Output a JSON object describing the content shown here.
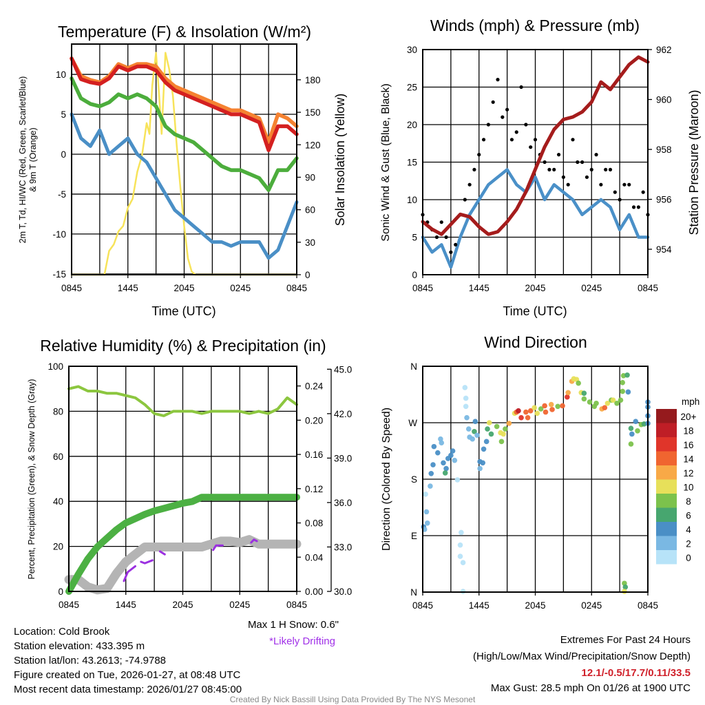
{
  "figure": {
    "location": "Location: Cold Brook",
    "elevation": "Station elevation: 433.395 m",
    "latlon": "Station lat/lon: 43.2613; -74.9788",
    "created": "Figure created on Tue, 2026-01-27, at 08:48 UTC",
    "recent": "Most recent data timestamp: 2026/01/27 08:45:00",
    "max_snow": "Max 1 H Snow: 0.6\"",
    "drifting": "*Likely Drifting",
    "extremes_title": "Extremes For Past 24 Hours",
    "extremes_sub": "(High/Low/Max Wind/Precipitation/Snow Depth)",
    "extremes_values": "12.1/-0.5/17.7/0.11/33.5",
    "max_gust": "Max Gust: 28.5 mph On 01/26 at 1900 UTC",
    "credit": "Created By Nick Bassill Using Data Provided By The NYS Mesonet"
  },
  "chart_data": [
    {
      "type": "line",
      "title": "Temperature (F) & Insolation (W/m²)",
      "xlabel": "Time (UTC)",
      "ylabel": "2m T, Td, HI/WC (Red, Green, Scarlet/Blue)",
      "ylabel2": "& 9m T (Orange)",
      "y2label": "Solar Insolation (Yellow)",
      "xticks": [
        "0845",
        "1445",
        "2045",
        "0245",
        "0845"
      ],
      "xlim_hours": [
        0,
        24
      ],
      "ylim": [
        -15.1,
        13.8
      ],
      "yticks": [
        -15,
        -10,
        -5,
        0,
        5,
        10
      ],
      "y2lim": [
        0,
        213
      ],
      "y2ticks": [
        0,
        30,
        60,
        90,
        120,
        150,
        180
      ],
      "hours": [
        0,
        1,
        2,
        3,
        4,
        5,
        6,
        7,
        8,
        9,
        10,
        11,
        12,
        13,
        14,
        15,
        16,
        17,
        18,
        19,
        20,
        21,
        22,
        23,
        24
      ],
      "series": [
        {
          "name": "Solar Insolation",
          "color": "#f7e35a",
          "axis": "right",
          "x": [
            0,
            3.5,
            4,
            4.5,
            5,
            5.5,
            6,
            6.5,
            7,
            7.5,
            8,
            8.3,
            8.6,
            9,
            9.3,
            9.6,
            10,
            10.4,
            10.8,
            11.2,
            11.6,
            12,
            12.4,
            12.8,
            13.2,
            24
          ],
          "y": [
            0,
            0,
            22,
            28,
            40,
            45,
            62,
            70,
            95,
            110,
            140,
            130,
            175,
            205,
            170,
            130,
            205,
            190,
            165,
            120,
            80,
            45,
            15,
            3,
            0,
            0
          ]
        },
        {
          "name": "9m T",
          "color": "#f58231",
          "axis": "left",
          "y": [
            12,
            9.8,
            9.3,
            9.0,
            9.8,
            11.3,
            10.8,
            11.3,
            11.3,
            11.0,
            9.5,
            8.5,
            8.0,
            7.5,
            7.0,
            6.5,
            6.0,
            5.5,
            5.5,
            5.0,
            4.5,
            1.5,
            5.0,
            4.5,
            3.5
          ]
        },
        {
          "name": "2m T",
          "color": "#d42020",
          "axis": "left",
          "y": [
            12,
            9.4,
            9.0,
            8.8,
            9.5,
            11.0,
            10.5,
            11.0,
            11.0,
            10.5,
            9.0,
            8.0,
            7.5,
            7.0,
            6.5,
            6.0,
            5.5,
            5.0,
            5.0,
            4.5,
            4.0,
            0.5,
            3.5,
            3.5,
            2.5
          ]
        },
        {
          "name": "HI/WC",
          "color": "#4cad3c",
          "axis": "left",
          "y": [
            9.5,
            7.0,
            6.3,
            6.0,
            6.5,
            7.5,
            7.0,
            7.5,
            7.0,
            6.0,
            3.5,
            2.5,
            2.0,
            1.5,
            0.5,
            -0.5,
            -1.5,
            -2.0,
            -2.0,
            -2.5,
            -3.0,
            -4.5,
            -2.0,
            -2.0,
            -0.5
          ]
        },
        {
          "name": "Td",
          "color": "#4a8fc6",
          "axis": "left",
          "y": [
            5,
            2,
            1,
            3,
            0,
            1,
            2,
            0,
            -1,
            -3,
            -5,
            -7,
            -8,
            -9,
            -10,
            -11,
            -11,
            -11.5,
            -11,
            -11,
            -11,
            -13,
            -12,
            -9,
            -6
          ]
        }
      ]
    },
    {
      "type": "line",
      "title": "Winds (mph) & Pressure (mb)",
      "xlabel": "Time (UTC)",
      "ylabel": "Sonic Wind & Gust (Blue, Black)",
      "y2label": "Station Pressure (Maroon)",
      "xticks": [
        "0845",
        "1445",
        "2045",
        "0245",
        "0845"
      ],
      "xlim_hours": [
        0,
        24
      ],
      "ylim": [
        0,
        30
      ],
      "yticks": [
        0,
        5,
        10,
        15,
        20,
        25,
        30
      ],
      "y2lim": [
        952.98,
        962
      ],
      "y2ticks": [
        954,
        956,
        958,
        960,
        962
      ],
      "hours": [
        0,
        1,
        2,
        3,
        4,
        5,
        6,
        7,
        8,
        9,
        10,
        11,
        12,
        13,
        14,
        15,
        16,
        17,
        18,
        19,
        20,
        21,
        22,
        23,
        24
      ],
      "wind": [
        5,
        3,
        4,
        1,
        5,
        8,
        10,
        12,
        13,
        14,
        12,
        11,
        13,
        10,
        12,
        11,
        10,
        8,
        9,
        10,
        9,
        6,
        8,
        5,
        5
      ],
      "gust_hours": [
        0,
        0.5,
        1,
        1.5,
        2,
        2.5,
        3,
        3.5,
        4,
        4.5,
        5,
        5.5,
        6,
        6.5,
        7,
        7.5,
        8,
        8.5,
        9,
        9.5,
        10,
        10.5,
        11,
        11.5,
        12,
        12.5,
        13,
        13.5,
        14,
        14.5,
        15,
        15.5,
        16,
        16.5,
        17,
        17.5,
        18,
        18.5,
        19,
        19.5,
        20,
        20.5,
        21,
        21.5,
        22,
        22.5,
        23,
        23.5,
        24
      ],
      "gust": [
        8,
        7,
        6,
        5,
        7,
        5,
        3,
        4,
        8,
        10,
        12,
        14,
        16,
        18,
        20,
        23,
        26,
        21,
        22,
        18,
        19,
        25,
        20,
        17,
        18,
        16,
        15,
        14,
        14,
        16,
        13,
        12,
        18,
        15,
        15,
        13,
        14,
        16,
        12,
        14,
        14,
        11,
        10,
        12,
        12,
        9,
        9,
        11,
        8
      ],
      "pressure": [
        955.1,
        954.8,
        954.6,
        955.0,
        955.4,
        955.3,
        954.9,
        954.6,
        954.7,
        955.1,
        955.6,
        956.3,
        957.2,
        958.1,
        958.8,
        959.2,
        959.3,
        959.5,
        959.9,
        960.7,
        960.4,
        960.9,
        961.4,
        961.7,
        961.5
      ],
      "colors": {
        "wind": "#4a90c8",
        "gust": "#000000",
        "pressure": "#a51c1c"
      }
    },
    {
      "type": "line",
      "title": "Relative Humidity (%) & Precipitation (in)",
      "ylabel": "Percent, Precipitation (Green), & Snow Depth (Gray)",
      "xticks": [
        "0845",
        "1445",
        "2045",
        "0245",
        "0845"
      ],
      "xlim_hours": [
        0,
        24
      ],
      "ylim": [
        0,
        100
      ],
      "yticks": [
        0,
        20,
        40,
        60,
        80,
        100
      ],
      "precip_lim": [
        0,
        0.263
      ],
      "precip_ticks": [
        "0.00",
        "0.04",
        "0.08",
        "0.12",
        "0.16",
        "0.20",
        "0.24"
      ],
      "snow_lim": [
        30,
        45.2
      ],
      "snow_ticks": [
        "30.0",
        "33.0",
        "36.0",
        "39.0",
        "42.0",
        "45.0"
      ],
      "hours": [
        0,
        1,
        2,
        3,
        4,
        5,
        6,
        7,
        8,
        9,
        10,
        11,
        12,
        13,
        14,
        15,
        16,
        17,
        18,
        19,
        20,
        21,
        22,
        23,
        24
      ],
      "rh": [
        90,
        91,
        89,
        89,
        88,
        88,
        87,
        86,
        83,
        79,
        78,
        80,
        80,
        80,
        79,
        80,
        80,
        80,
        80,
        79,
        80,
        79,
        81,
        86,
        83
      ],
      "precip": [
        0,
        0.02,
        0.038,
        0.052,
        0.062,
        0.072,
        0.08,
        0.085,
        0.09,
        0.094,
        0.097,
        0.1,
        0.103,
        0.105,
        0.11,
        0.11,
        0.11,
        0.11,
        0.11,
        0.11,
        0.11,
        0.11,
        0.11,
        0.11,
        0.11
      ],
      "snow_depth": [
        30.8,
        30.8,
        30.3,
        30.1,
        30.2,
        31.2,
        32.0,
        32.5,
        33.0,
        33.0,
        33.0,
        33.0,
        33.0,
        33.0,
        33.0,
        33.2,
        33.4,
        33.4,
        33.3,
        33.5,
        33.2,
        33.2,
        33.2,
        33.2,
        33.2
      ],
      "drifting": [
        [
          [
            5.8,
            30.7
          ],
          [
            6.2,
            31.3
          ],
          [
            7.0,
            31.7
          ]
        ],
        [
          [
            7.6,
            32.0
          ],
          [
            8.0,
            31.9
          ],
          [
            8.8,
            32.1
          ]
        ],
        [
          [
            9.6,
            32.7
          ],
          [
            10.1,
            32.5
          ]
        ],
        [
          [
            15.2,
            32.8
          ],
          [
            15.5,
            33.1
          ],
          [
            16.2,
            33.1
          ]
        ],
        [
          [
            19.2,
            33.3
          ],
          [
            19.5,
            33.5
          ],
          [
            19.8,
            33.4
          ]
        ]
      ],
      "colors": {
        "rh": "#8cc63f",
        "precip": "#4cb043",
        "snow": "#b4b4b4",
        "drifting": "#9b30e0"
      }
    },
    {
      "type": "scatter",
      "title": "Wind Direction",
      "ylabel": "Direction (Colored By Speed)",
      "xticks": [
        "0845",
        "1445",
        "2045",
        "0245",
        "0845"
      ],
      "xlim_hours": [
        0,
        24
      ],
      "ylim": [
        0,
        360
      ],
      "yticks": [
        0,
        90,
        180,
        270,
        360
      ],
      "ytick_labels": [
        "N",
        "E",
        "S",
        "W",
        "N"
      ],
      "points_h_dir_mph": [
        [
          0.1,
          104,
          4
        ],
        [
          0.2,
          100,
          3
        ],
        [
          0.4,
          128,
          2
        ],
        [
          0.5,
          110,
          2
        ],
        [
          0.3,
          156,
          1
        ],
        [
          0.8,
          169,
          2
        ],
        [
          0.9,
          189,
          4
        ],
        [
          1.1,
          203,
          4
        ],
        [
          1.2,
          232,
          4
        ],
        [
          1.6,
          222,
          4
        ],
        [
          1.9,
          244,
          3
        ],
        [
          2.0,
          238,
          3
        ],
        [
          2.2,
          206,
          4
        ],
        [
          2.5,
          197,
          4
        ],
        [
          2.4,
          190,
          6
        ],
        [
          2.7,
          213,
          4
        ],
        [
          3.0,
          218,
          4
        ],
        [
          3.2,
          225,
          4
        ],
        [
          3.4,
          210,
          3
        ],
        [
          3.7,
          179,
          1
        ],
        [
          4.5,
          326,
          0
        ],
        [
          4.6,
          309,
          0
        ],
        [
          4.6,
          296,
          0
        ],
        [
          4.7,
          278,
          2
        ],
        [
          4.1,
          95,
          0
        ],
        [
          4.0,
          75,
          1
        ],
        [
          4.0,
          57,
          0
        ],
        [
          4.3,
          47,
          0
        ],
        [
          4.3,
          1,
          0
        ],
        [
          4.9,
          260,
          2
        ],
        [
          5.0,
          247,
          2
        ],
        [
          5.3,
          244,
          3
        ],
        [
          5.6,
          272,
          4
        ],
        [
          5.5,
          256,
          6
        ],
        [
          5.8,
          250,
          3
        ],
        [
          6.1,
          208,
          4
        ],
        [
          6.4,
          206,
          4
        ],
        [
          6.5,
          228,
          4
        ],
        [
          6.8,
          240,
          4
        ],
        [
          6.1,
          197,
          3
        ],
        [
          6.9,
          260,
          6
        ],
        [
          7.3,
          252,
          6
        ],
        [
          7.1,
          270,
          10
        ],
        [
          7.9,
          264,
          8
        ],
        [
          8.3,
          254,
          10
        ],
        [
          8.6,
          252,
          10
        ],
        [
          8.4,
          240,
          8
        ],
        [
          8.8,
          260,
          8
        ],
        [
          9.2,
          269,
          12
        ],
        [
          9.8,
          285,
          10
        ],
        [
          10.0,
          287,
          14
        ],
        [
          10.2,
          289,
          18
        ],
        [
          10.5,
          278,
          16
        ],
        [
          11.0,
          287,
          14
        ],
        [
          11.5,
          289,
          14
        ],
        [
          11.2,
          278,
          14
        ],
        [
          11.9,
          294,
          10
        ],
        [
          12.2,
          285,
          10
        ],
        [
          12.6,
          292,
          8
        ],
        [
          13.0,
          297,
          14
        ],
        [
          13.1,
          287,
          14
        ],
        [
          13.8,
          291,
          14
        ],
        [
          13.7,
          299,
          12
        ],
        [
          14.4,
          296,
          8
        ],
        [
          14.9,
          297,
          14
        ],
        [
          15.4,
          311,
          16
        ],
        [
          15.5,
          318,
          12
        ],
        [
          15.9,
          336,
          12
        ],
        [
          16.1,
          340,
          10
        ],
        [
          16.4,
          339,
          10
        ],
        [
          16.6,
          333,
          8
        ],
        [
          16.9,
          318,
          10
        ],
        [
          17.2,
          317,
          6
        ],
        [
          17.2,
          308,
          8
        ],
        [
          17.8,
          303,
          8
        ],
        [
          18.3,
          296,
          8
        ],
        [
          18.5,
          301,
          8
        ],
        [
          19.1,
          292,
          12
        ],
        [
          19.4,
          294,
          14
        ],
        [
          19.7,
          301,
          10
        ],
        [
          20.1,
          306,
          8
        ],
        [
          20.3,
          306,
          10
        ],
        [
          20.7,
          301,
          8
        ],
        [
          21.1,
          306,
          8
        ],
        [
          21.3,
          320,
          8
        ],
        [
          21.3,
          334,
          8
        ],
        [
          21.4,
          345,
          8
        ],
        [
          21.8,
          346,
          6
        ],
        [
          21.9,
          319,
          4
        ],
        [
          21.5,
          14,
          8
        ],
        [
          21.6,
          8,
          6
        ],
        [
          21.5,
          1,
          10
        ],
        [
          22.2,
          261,
          6
        ],
        [
          22.3,
          252,
          4
        ],
        [
          22.2,
          236,
          8
        ],
        [
          22.7,
          272,
          4
        ],
        [
          22.9,
          257,
          8
        ],
        [
          23.3,
          267,
          8
        ],
        [
          23.6,
          268,
          6
        ],
        [
          24.0,
          269,
          4
        ],
        [
          24.0,
          281,
          4
        ],
        [
          24.0,
          295,
          4
        ],
        [
          24.0,
          303,
          4
        ]
      ],
      "legend": {
        "title": "mph",
        "labels": [
          "20+",
          "18",
          "16",
          "14",
          "12",
          "10",
          "8",
          "6",
          "4",
          "2",
          "0"
        ],
        "colors": [
          "#951a1d",
          "#bf1e26",
          "#e0352a",
          "#f06530",
          "#f8a947",
          "#e7e05a",
          "#7cc24c",
          "#47a66f",
          "#4a8fc6",
          "#7ab8e3",
          "#b7e3f8"
        ]
      }
    }
  ]
}
